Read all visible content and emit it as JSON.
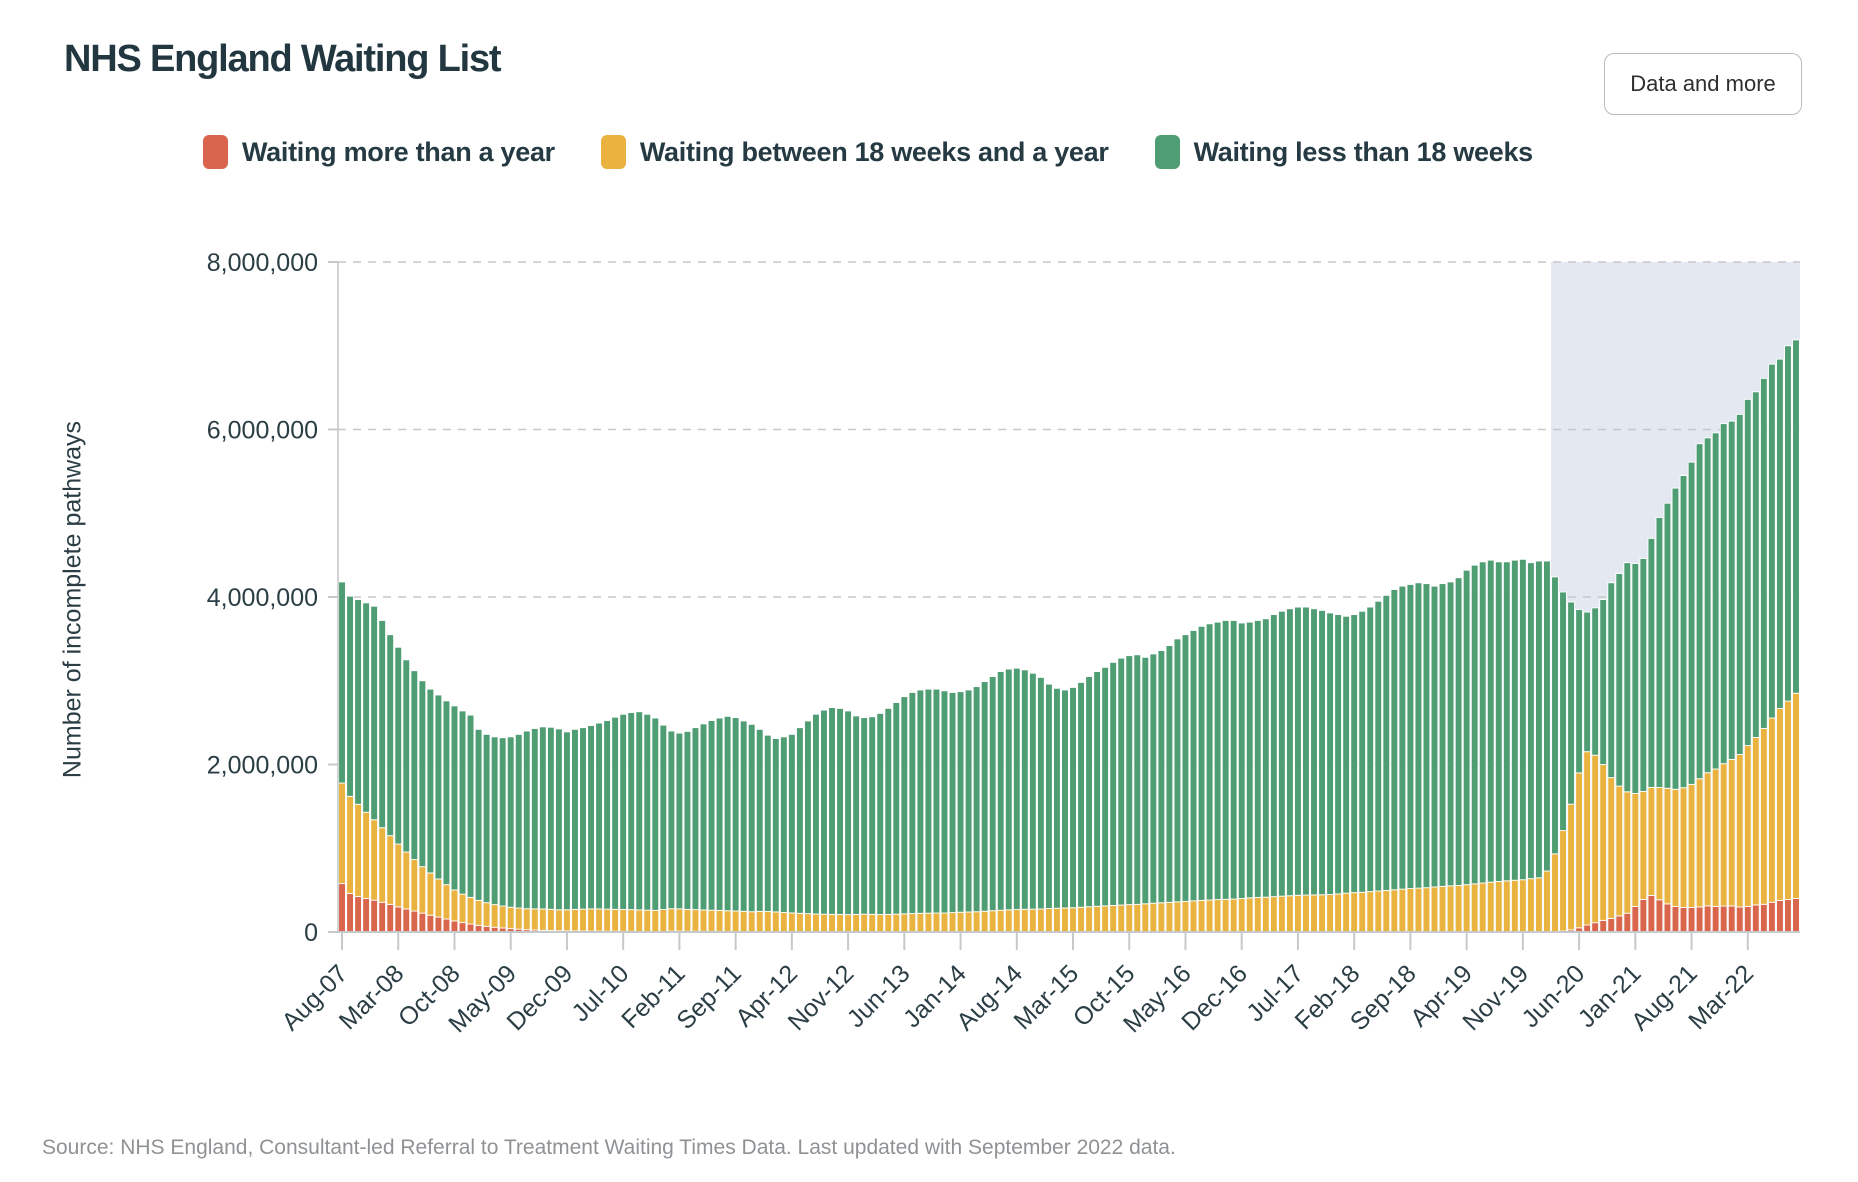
{
  "header": {
    "title": "NHS England Waiting List",
    "button_label": "Data and more"
  },
  "legend": {
    "items": [
      {
        "label": "Waiting more than a year",
        "color": "#d9654d"
      },
      {
        "label": "Waiting between 18 weeks and a year",
        "color": "#eab23f"
      },
      {
        "label": "Waiting less than 18 weeks",
        "color": "#4f9d73"
      }
    ]
  },
  "source_note": "Source: NHS England, Consultant-led Referral to Treatment Waiting Times Data. Last updated with September 2022 data.",
  "chart_data": {
    "type": "bar",
    "stacked": true,
    "title": "NHS England Waiting List",
    "xlabel": "",
    "ylabel": "Number of incomplete pathways",
    "ylim": [
      0,
      8000000
    ],
    "y_tick_values": [
      0,
      2000000,
      4000000,
      6000000,
      8000000
    ],
    "y_tick_labels": [
      "0",
      "2,000,000",
      "4,000,000",
      "6,000,000",
      "8,000,000"
    ],
    "grid": "horizontal-dashed",
    "legend_position": "top",
    "x_start": "Aug-07",
    "x_end": "Sep-22",
    "bar_interval": "one bar per month",
    "x_tick_every": 7,
    "x_tick_labels": [
      "Aug-07",
      "Mar-08",
      "Oct-08",
      "May-09",
      "Dec-09",
      "Jul-10",
      "Feb-11",
      "Sep-11",
      "Apr-12",
      "Nov-12",
      "Jun-13",
      "Jan-14",
      "Aug-14",
      "Mar-15",
      "Oct-15",
      "May-16",
      "Dec-16",
      "Jul-17",
      "Feb-18",
      "Sep-18",
      "Apr-19",
      "Nov-19",
      "Jun-20",
      "Jan-21",
      "Aug-21",
      "Mar-22"
    ],
    "highlight_region": {
      "from_label": "Mar-20",
      "from_index": 151,
      "to_label": "Sep-22",
      "color": "#e4e8f1"
    },
    "series": [
      {
        "name": "Waiting more than a year",
        "color": "#d9654d",
        "values": [
          578000,
          460000,
          425000,
          400000,
          380000,
          355000,
          330000,
          300000,
          275000,
          250000,
          225000,
          200000,
          178000,
          155000,
          132000,
          112000,
          95000,
          80000,
          68000,
          57000,
          48000,
          40000,
          34000,
          28000,
          24000,
          20000,
          17000,
          15000,
          13000,
          12000,
          11000,
          10000,
          10000,
          9000,
          9000,
          8000,
          8000,
          7000,
          7000,
          6000,
          6000,
          10000,
          10000,
          9000,
          9000,
          8000,
          8000,
          8000,
          7000,
          7000,
          7000,
          6000,
          6000,
          6000,
          6000,
          5000,
          5000,
          5000,
          5000,
          4000,
          4000,
          4000,
          4000,
          4000,
          4000,
          4000,
          4000,
          3000,
          3000,
          3000,
          3000,
          3000,
          3000,
          3000,
          2000,
          2000,
          2000,
          2000,
          2000,
          2000,
          2000,
          2000,
          2000,
          2000,
          2000,
          2000,
          2000,
          2000,
          2000,
          1000,
          1000,
          1000,
          1000,
          1000,
          1000,
          1000,
          1000,
          1000,
          1000,
          1000,
          1000,
          1000,
          1000,
          1000,
          1000,
          1000,
          1000,
          1000,
          1000,
          1000,
          1000,
          1000,
          1000,
          2000,
          2000,
          2000,
          2000,
          2000,
          2000,
          2000,
          2000,
          2000,
          2000,
          2000,
          2000,
          3000,
          3000,
          3000,
          3000,
          3000,
          3000,
          3000,
          3000,
          3000,
          3000,
          3000,
          3000,
          2000,
          2000,
          2000,
          2000,
          2000,
          2000,
          2000,
          2000,
          2000,
          2000,
          2000,
          2000,
          2000,
          2000,
          3000,
          11000,
          26000,
          50000,
          83000,
          111000,
          139000,
          163000,
          192000,
          224000,
          304000,
          388000,
          436000,
          385000,
          336000,
          304000,
          293000,
          293000,
          300000,
          312000,
          306000,
          310000,
          311000,
          299000,
          306000,
          323000,
          331000,
          355000,
          378000,
          387000,
          401000
        ]
      },
      {
        "name": "Waiting between 18 weeks and a year",
        "color": "#eab23f",
        "values": [
          1200000,
          1160000,
          1100000,
          1030000,
          960000,
          890000,
          820000,
          750000,
          680000,
          615000,
          555000,
          505000,
          455000,
          410000,
          370000,
          340000,
          318000,
          298000,
          282000,
          270000,
          262000,
          256000,
          252000,
          250000,
          252000,
          255000,
          254000,
          250000,
          253000,
          258000,
          262000,
          266000,
          266000,
          264000,
          262000,
          261000,
          259000,
          257000,
          254000,
          253000,
          262000,
          268000,
          266000,
          261000,
          258000,
          255000,
          252000,
          250000,
          247000,
          244000,
          240000,
          236000,
          240000,
          239000,
          234000,
          228000,
          223000,
          218000,
          214000,
          211000,
          209000,
          207000,
          205000,
          203000,
          206000,
          209000,
          207000,
          205000,
          207000,
          210000,
          214000,
          217000,
          220000,
          222000,
          224000,
          225000,
          230000,
          234000,
          237000,
          240000,
          246000,
          252000,
          258000,
          263000,
          266000,
          269000,
          271000,
          273000,
          279000,
          283000,
          286000,
          289000,
          295000,
          301000,
          306000,
          311000,
          316000,
          321000,
          326000,
          329000,
          336000,
          343000,
          348000,
          353000,
          359000,
          365000,
          371000,
          376000,
          381000,
          386000,
          389000,
          392000,
          399000,
          406000,
          411000,
          414000,
          420000,
          426000,
          431000,
          436000,
          439000,
          441000,
          443000,
          445000,
          453000,
          461000,
          467000,
          471000,
          479000,
          486000,
          493000,
          501000,
          509000,
          516000,
          521000,
          526000,
          535000,
          543000,
          549000,
          554000,
          563000,
          573000,
          583000,
          593000,
          601000,
          609000,
          616000,
          622000,
          635000,
          645000,
          726000,
          930000,
          1200000,
          1500000,
          1850000,
          2070000,
          2000000,
          1860000,
          1680000,
          1550000,
          1450000,
          1350000,
          1290000,
          1290000,
          1340000,
          1380000,
          1400000,
          1430000,
          1470000,
          1530000,
          1590000,
          1640000,
          1700000,
          1750000,
          1820000,
          1920000,
          2000000,
          2100000,
          2200000,
          2290000,
          2370000,
          2450000
        ]
      },
      {
        "name": "Waiting less than 18 weeks",
        "color": "#4f9d73",
        "values": [
          2402000,
          2390000,
          2445000,
          2500000,
          2550000,
          2475000,
          2400000,
          2350000,
          2295000,
          2255000,
          2220000,
          2195000,
          2197000,
          2195000,
          2198000,
          2188000,
          2177000,
          2042000,
          2010000,
          2003000,
          2010000,
          2034000,
          2074000,
          2122000,
          2154000,
          2175000,
          2174000,
          2160000,
          2124000,
          2150000,
          2167000,
          2189000,
          2219000,
          2252000,
          2294000,
          2331000,
          2353000,
          2366000,
          2339000,
          2296000,
          2202000,
          2122000,
          2099000,
          2125000,
          2173000,
          2222000,
          2265000,
          2297000,
          2321000,
          2309000,
          2273000,
          2238000,
          2174000,
          2105000,
          2070000,
          2097000,
          2132000,
          2217000,
          2301000,
          2385000,
          2437000,
          2469000,
          2461000,
          2433000,
          2370000,
          2347000,
          2359000,
          2402000,
          2460000,
          2527000,
          2593000,
          2640000,
          2667000,
          2675000,
          2674000,
          2653000,
          2628000,
          2634000,
          2651000,
          2688000,
          2742000,
          2796000,
          2850000,
          2875000,
          2882000,
          2859000,
          2817000,
          2765000,
          2679000,
          2626000,
          2603000,
          2630000,
          2684000,
          2748000,
          2803000,
          2848000,
          2903000,
          2948000,
          2973000,
          2980000,
          2943000,
          2976000,
          3011000,
          3066000,
          3140000,
          3184000,
          3228000,
          3273000,
          3298000,
          3313000,
          3330000,
          3327000,
          3290000,
          3292000,
          3307000,
          3324000,
          3368000,
          3402000,
          3427000,
          3442000,
          3439000,
          3417000,
          3395000,
          3363000,
          3335000,
          3306000,
          3320000,
          3356000,
          3398000,
          3461000,
          3524000,
          3586000,
          3618000,
          3631000,
          3646000,
          3631000,
          3592000,
          3615000,
          3629000,
          3674000,
          3755000,
          3805000,
          3835000,
          3845000,
          3817000,
          3809000,
          3822000,
          3826000,
          3773000,
          3783000,
          3702000,
          3307000,
          2849000,
          2414000,
          1950000,
          1667000,
          1759000,
          1971000,
          2327000,
          2538000,
          2736000,
          2746000,
          2782000,
          2974000,
          3225000,
          3404000,
          3596000,
          3727000,
          3847000,
          4000000,
          3998000,
          4014000,
          4060000,
          4039000,
          4061000,
          4134000,
          4127000,
          4179000,
          4225000,
          4172000,
          4243000,
          4219000
        ]
      }
    ]
  }
}
